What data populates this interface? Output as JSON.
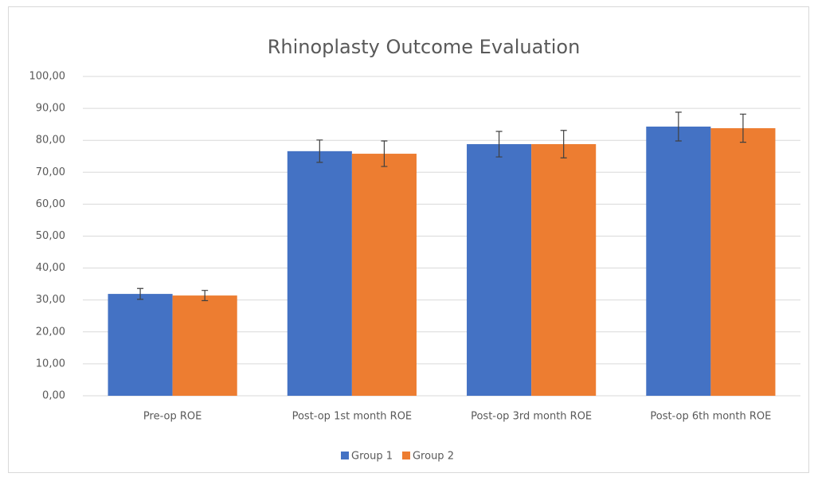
{
  "chart_data": {
    "type": "bar",
    "title": "Rhinoplasty Outcome Evaluation",
    "categories": [
      "Pre-op ROE",
      "Post-op 1st month ROE",
      "Post-op 3rd month ROE",
      "Post-op 6th month ROE"
    ],
    "series": [
      {
        "name": "Group 1",
        "color": "#4472c4",
        "values": [
          31.9,
          76.6,
          78.8,
          84.3
        ],
        "errors": [
          1.7,
          3.5,
          4.0,
          4.5
        ]
      },
      {
        "name": "Group 2",
        "color": "#ed7d31",
        "values": [
          31.4,
          75.8,
          78.8,
          83.8
        ],
        "errors": [
          1.6,
          4.0,
          4.3,
          4.4
        ]
      }
    ],
    "ylim": [
      0,
      100
    ],
    "yticks": [
      {
        "value": 0,
        "label": "0,00"
      },
      {
        "value": 10,
        "label": "10,00"
      },
      {
        "value": 20,
        "label": "20,00"
      },
      {
        "value": 30,
        "label": "30,00"
      },
      {
        "value": 40,
        "label": "40,00"
      },
      {
        "value": 50,
        "label": "50,00"
      },
      {
        "value": 60,
        "label": "60,00"
      },
      {
        "value": 70,
        "label": "70,00"
      },
      {
        "value": 80,
        "label": "80,00"
      },
      {
        "value": 90,
        "label": "90,00"
      },
      {
        "value": 100,
        "label": "100,00"
      }
    ],
    "grid": true,
    "legend": "bottom"
  }
}
